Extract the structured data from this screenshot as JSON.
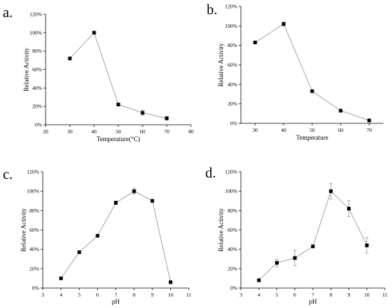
{
  "chart_data": [
    {
      "panel": "a.",
      "type": "line",
      "xlabel": "Temperature(°C)",
      "ylabel": "Relative Activity",
      "xlim": [
        20,
        80
      ],
      "xticks": [
        "20",
        "30",
        "40",
        "50",
        "60",
        "70",
        "80"
      ],
      "ylim": [
        0,
        120
      ],
      "yticks": [
        "0%",
        "20%",
        "40%",
        "60%",
        "80%",
        "100%",
        "120%"
      ],
      "x": [
        30,
        40,
        50,
        60,
        70
      ],
      "y": [
        72,
        100,
        22,
        13,
        7
      ],
      "err": [
        0,
        0,
        0,
        3,
        2
      ]
    },
    {
      "panel": "b.",
      "type": "line",
      "xlabel": "Temperature",
      "ylabel": "Relative Activity",
      "xlim": [
        25,
        75
      ],
      "xticks": [
        "30",
        "40",
        "50",
        "60",
        "70"
      ],
      "ylim": [
        0,
        120
      ],
      "yticks": [
        "0%",
        "20%",
        "40%",
        "60%",
        "80%",
        "100%",
        "120%"
      ],
      "x": [
        30,
        40,
        50,
        60,
        70
      ],
      "y": [
        83,
        102,
        33,
        13,
        3
      ],
      "err": [
        1.5,
        2,
        0,
        0,
        1.5
      ]
    },
    {
      "panel": "c.",
      "type": "line",
      "xlabel": "pH",
      "ylabel": "Relative Activity",
      "xlim": [
        3,
        11
      ],
      "xticks": [
        "3",
        "4",
        "5",
        "6",
        "7",
        "8",
        "9",
        "10",
        "11"
      ],
      "ylim": [
        0,
        120
      ],
      "yticks": [
        "0%",
        "20%",
        "40%",
        "60%",
        "80%",
        "100%",
        "120%"
      ],
      "x": [
        4,
        5,
        6,
        7,
        8,
        9,
        10
      ],
      "y": [
        10,
        37,
        54,
        88,
        100,
        90,
        6
      ],
      "err": [
        0,
        0,
        0,
        2,
        3,
        0,
        0
      ]
    },
    {
      "panel": "d.",
      "type": "line",
      "xlabel": "pH",
      "ylabel": "Relative Activity",
      "xlim": [
        3,
        11
      ],
      "xticks": [
        "3",
        "4",
        "5",
        "6",
        "7",
        "8",
        "9",
        "10",
        "11"
      ],
      "ylim": [
        0,
        120
      ],
      "yticks": [
        "0%",
        "20%",
        "40%",
        "60%",
        "80%",
        "100%",
        "120%"
      ],
      "x": [
        4,
        5,
        6,
        7,
        8,
        9,
        10
      ],
      "y": [
        8,
        26,
        31,
        43,
        100,
        82,
        44
      ],
      "err": [
        1.5,
        4,
        8,
        0,
        8,
        8,
        8
      ]
    }
  ]
}
